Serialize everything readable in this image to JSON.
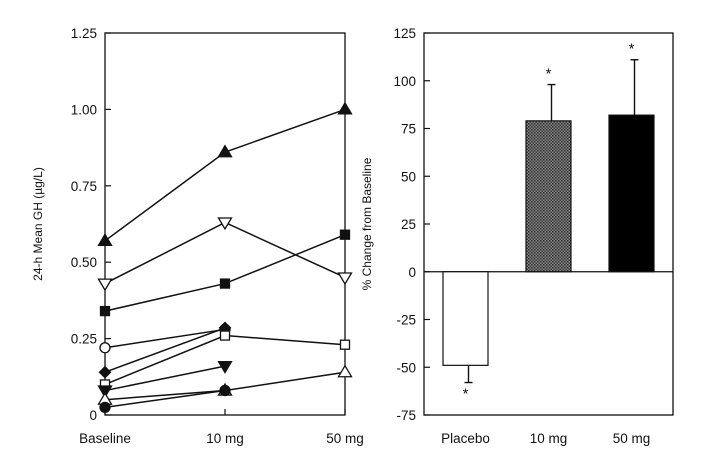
{
  "chart_data": [
    {
      "type": "line",
      "title": "",
      "xlabel": "",
      "ylabel": "24-h Mean GH (µg/L)",
      "categories": [
        "Baseline",
        "10 mg",
        "50 mg"
      ],
      "ylim": [
        0,
        1.25
      ],
      "y_ticks": [
        "0",
        "0.25",
        "0.50",
        "0.75",
        "1.00",
        "1.25"
      ],
      "grid": false,
      "legend": "none",
      "series": [
        {
          "marker": "triangle-up-filled",
          "values": [
            0.57,
            0.86,
            1.0
          ]
        },
        {
          "marker": "triangle-down-open",
          "values": [
            0.43,
            0.63,
            0.45
          ]
        },
        {
          "marker": "square-filled",
          "values": [
            0.34,
            0.43,
            0.59
          ]
        },
        {
          "marker": "circle-open",
          "values": [
            0.22,
            0.28,
            null
          ]
        },
        {
          "marker": "diamond-filled",
          "values": [
            0.14,
            0.285,
            null
          ]
        },
        {
          "marker": "square-open",
          "values": [
            0.1,
            0.26,
            0.23
          ]
        },
        {
          "marker": "triangle-down-filled",
          "values": [
            0.08,
            0.16,
            null
          ]
        },
        {
          "marker": "triangle-up-open",
          "values": [
            0.05,
            0.08,
            0.14
          ]
        },
        {
          "marker": "circle-filled",
          "values": [
            0.025,
            0.08,
            null
          ]
        }
      ]
    },
    {
      "type": "bar",
      "title": "",
      "xlabel": "",
      "ylabel": "% Change from Baseline",
      "categories": [
        "Placebo",
        "10 mg",
        "50 mg"
      ],
      "ylim": [
        -75,
        125
      ],
      "y_ticks": [
        "-75",
        "-50",
        "-25",
        "0",
        "25",
        "50",
        "75",
        "100",
        "125"
      ],
      "grid": false,
      "legend": "none",
      "bars": [
        {
          "value": -49,
          "error": 9,
          "error_direction": "down",
          "significance": "*",
          "fill": "#ffffff"
        },
        {
          "value": 79,
          "error": 19,
          "error_direction": "up",
          "significance": "*",
          "fill": "#555555"
        },
        {
          "value": 82,
          "error": 29,
          "error_direction": "up",
          "significance": "*",
          "fill": "#000000"
        }
      ]
    }
  ]
}
